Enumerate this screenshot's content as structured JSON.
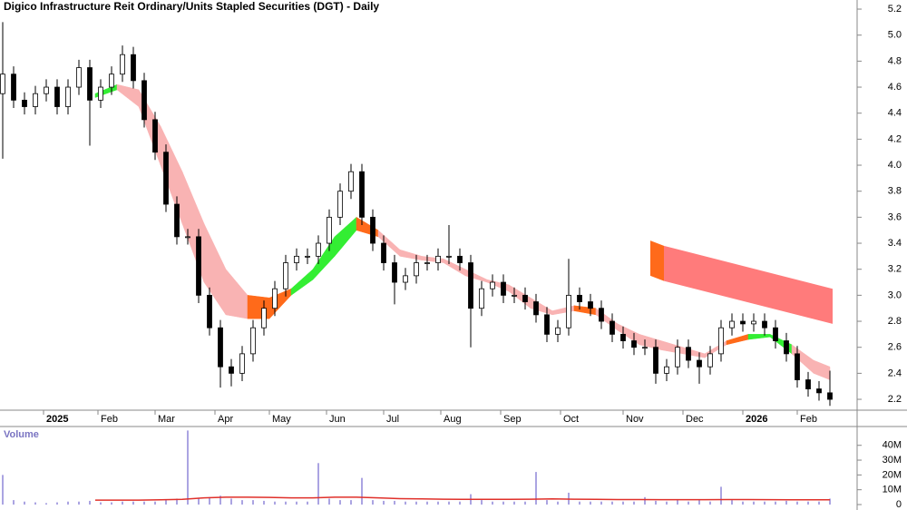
{
  "chart_data": [
    {
      "type": "candlestick",
      "title": "Digico Infrastructure Reit Ordinary/Units Stapled Securities (DGT) - Daily",
      "x": [
        1,
        5,
        9,
        13,
        17,
        21,
        25,
        29,
        33,
        37,
        41,
        45,
        49,
        53,
        57,
        61,
        65,
        69,
        73,
        77,
        81,
        85,
        89,
        93,
        97,
        101,
        105,
        109,
        113,
        117,
        121,
        125,
        129,
        133,
        137,
        141,
        145,
        149,
        153,
        157,
        161,
        165,
        169,
        173,
        177,
        181,
        185,
        189,
        193,
        197,
        201,
        205,
        209,
        213,
        217,
        221,
        225,
        229,
        233,
        237,
        241,
        245,
        249,
        253,
        257,
        261,
        265,
        269,
        273,
        277,
        281,
        285,
        289,
        293,
        297,
        301,
        305
      ],
      "open": [
        4.55,
        4.7,
        4.5,
        4.45,
        4.55,
        4.6,
        4.45,
        4.6,
        4.75,
        4.5,
        4.6,
        4.7,
        4.85,
        4.65,
        4.35,
        4.1,
        3.7,
        3.45,
        3.45,
        3.0,
        2.75,
        2.45,
        2.4,
        2.55,
        2.75,
        2.9,
        3.05,
        3.25,
        3.3,
        3.3,
        3.4,
        3.6,
        3.8,
        3.95,
        3.6,
        3.4,
        3.25,
        3.1,
        3.15,
        3.25,
        3.25,
        3.3,
        3.3,
        3.25,
        2.9,
        3.05,
        3.1,
        3.0,
        3.0,
        2.95,
        2.85,
        2.7,
        2.75,
        3.0,
        2.95,
        2.9,
        2.8,
        2.7,
        2.65,
        2.6,
        2.6,
        2.4,
        2.45,
        2.6,
        2.5,
        2.45,
        2.55,
        2.75,
        2.8,
        2.78,
        2.8,
        2.75,
        2.65,
        2.55,
        2.35,
        2.28,
        2.25
      ],
      "high": [
        5.1,
        4.76,
        4.56,
        4.61,
        4.66,
        4.66,
        4.66,
        4.81,
        4.81,
        4.66,
        4.76,
        4.92,
        4.91,
        4.71,
        4.41,
        4.16,
        3.76,
        3.51,
        3.51,
        3.06,
        2.81,
        2.51,
        2.61,
        2.81,
        2.96,
        3.11,
        3.31,
        3.36,
        3.36,
        3.46,
        3.66,
        3.86,
        4.01,
        4.01,
        3.66,
        3.46,
        3.31,
        3.21,
        3.31,
        3.31,
        3.36,
        3.54,
        3.36,
        3.31,
        3.11,
        3.16,
        3.16,
        3.06,
        3.06,
        3.01,
        2.91,
        2.81,
        3.28,
        3.06,
        3.01,
        2.96,
        2.86,
        2.76,
        2.71,
        2.66,
        2.66,
        2.51,
        2.66,
        2.66,
        2.56,
        2.61,
        2.81,
        2.86,
        2.86,
        2.86,
        2.86,
        2.81,
        2.71,
        2.61,
        2.41,
        2.34,
        2.42
      ],
      "low": [
        4.05,
        4.44,
        4.39,
        4.39,
        4.49,
        4.39,
        4.39,
        4.54,
        4.15,
        4.44,
        4.54,
        4.64,
        4.59,
        4.29,
        4.04,
        3.64,
        3.39,
        3.39,
        2.94,
        2.69,
        2.29,
        2.3,
        2.34,
        2.49,
        2.69,
        2.84,
        2.99,
        3.19,
        3.24,
        3.24,
        3.34,
        3.54,
        3.74,
        3.54,
        3.34,
        3.19,
        2.93,
        3.04,
        3.09,
        3.19,
        3.19,
        3.24,
        3.19,
        2.6,
        2.84,
        2.99,
        2.94,
        2.94,
        2.89,
        2.79,
        2.64,
        2.64,
        2.69,
        2.89,
        2.84,
        2.74,
        2.64,
        2.59,
        2.54,
        2.54,
        2.32,
        2.34,
        2.39,
        2.44,
        2.32,
        2.39,
        2.49,
        2.69,
        2.72,
        2.72,
        2.69,
        2.59,
        2.49,
        2.29,
        2.22,
        2.19,
        2.15
      ],
      "close": [
        4.7,
        4.5,
        4.45,
        4.55,
        4.6,
        4.45,
        4.6,
        4.75,
        4.5,
        4.6,
        4.7,
        4.85,
        4.65,
        4.35,
        4.1,
        3.7,
        3.45,
        3.45,
        3.0,
        2.75,
        2.45,
        2.4,
        2.55,
        2.75,
        2.9,
        3.05,
        3.25,
        3.3,
        3.3,
        3.4,
        3.6,
        3.8,
        3.95,
        3.6,
        3.4,
        3.25,
        3.1,
        3.15,
        3.25,
        3.25,
        3.3,
        3.3,
        3.25,
        2.9,
        3.05,
        3.1,
        3.0,
        3.0,
        2.95,
        2.85,
        2.7,
        2.75,
        3.0,
        2.95,
        2.9,
        2.8,
        2.7,
        2.65,
        2.6,
        2.6,
        2.4,
        2.45,
        2.6,
        2.5,
        2.45,
        2.55,
        2.75,
        2.8,
        2.78,
        2.8,
        2.75,
        2.65,
        2.55,
        2.35,
        2.28,
        2.25,
        2.2
      ],
      "up_color": "#ffffff",
      "down_color": "#000000",
      "xlim": [
        0,
        315
      ],
      "xticks": [
        {
          "value": 16,
          "label": "2025"
        },
        {
          "value": 36,
          "label": "Feb"
        },
        {
          "value": 57,
          "label": "Mar"
        },
        {
          "value": 79,
          "label": "Apr"
        },
        {
          "value": 99,
          "label": "May"
        },
        {
          "value": 120,
          "label": "Jun"
        },
        {
          "value": 141,
          "label": "Jul"
        },
        {
          "value": 162,
          "label": "Aug"
        },
        {
          "value": 184,
          "label": "Sep"
        },
        {
          "value": 206,
          "label": "Oct"
        },
        {
          "value": 229,
          "label": "Nov"
        },
        {
          "value": 251,
          "label": "Dec"
        },
        {
          "value": 273,
          "label": "2026"
        },
        {
          "value": 293,
          "label": "Feb"
        }
      ],
      "ylim": [
        2.12,
        5.27
      ],
      "yticks": [
        2.2,
        2.4,
        2.6,
        2.8,
        {
          "value": 3,
          "label": "3.0"
        },
        3.2,
        3.4,
        3.6,
        3.8,
        {
          "value": 4,
          "label": "4.0"
        },
        4.2,
        4.4,
        4.6,
        4.8,
        {
          "value": 5,
          "label": "5.0"
        },
        5.2
      ],
      "ribbon": {
        "x": [
          35,
          43,
          51,
          59,
          67,
          75,
          83,
          91,
          99,
          107,
          115,
          123,
          131,
          139,
          147,
          155,
          163,
          171,
          179,
          187,
          195,
          203,
          211,
          219,
          227,
          235,
          243,
          251,
          259,
          267,
          275,
          283,
          291,
          299,
          305
        ],
        "upper": [
          4.55,
          4.62,
          4.58,
          4.3,
          3.95,
          3.55,
          3.2,
          3.0,
          2.98,
          3.05,
          3.2,
          3.45,
          3.6,
          3.5,
          3.35,
          3.3,
          3.28,
          3.2,
          3.12,
          3.08,
          2.98,
          2.88,
          2.92,
          2.9,
          2.78,
          2.7,
          2.65,
          2.6,
          2.55,
          2.65,
          2.7,
          2.7,
          2.62,
          2.5,
          2.45
        ],
        "lower": [
          4.52,
          4.58,
          4.45,
          4.0,
          3.55,
          3.1,
          2.85,
          2.82,
          2.82,
          3.0,
          3.12,
          3.3,
          3.5,
          3.45,
          3.3,
          3.27,
          3.25,
          3.15,
          3.1,
          3.03,
          2.9,
          2.85,
          2.88,
          2.85,
          2.73,
          2.62,
          2.58,
          2.55,
          2.52,
          2.62,
          2.66,
          2.68,
          2.55,
          2.4,
          2.35
        ],
        "colors": [
          "#33ee33",
          "#f9b3b3",
          "#f9b3b3",
          "#f9b3b3",
          "#f9b3b3",
          "#f9b3b3",
          "#f9b3b3",
          "#ff6a1a",
          "#ff6a1a",
          "#33ee33",
          "#33ee33",
          "#33ee33",
          "#ff6a1a",
          "#f9b3b3",
          "#f9b3b3",
          "#f9b3b3",
          "#f9b3b3",
          "#f9b3b3",
          "#f9b3b3",
          "#f9b3b3",
          "#f9b3b3",
          "#f9b3b3",
          "#ff6a1a",
          "#f9b3b3",
          "#f9b3b3",
          "#f9b3b3",
          "#f9b3b3",
          "#f9b3b3",
          "#f9b3b3",
          "#ff6a1a",
          "#33ee33",
          "#33ee33",
          "#f9b3b3",
          "#f9b3b3"
        ]
      },
      "projection": {
        "x": [
          239,
          244,
          306
        ],
        "upper": [
          3.42,
          3.38,
          3.05
        ],
        "lower": [
          3.15,
          3.11,
          2.78
        ],
        "colors": [
          "#ff6a1a",
          "#ff7b7b"
        ]
      }
    },
    {
      "type": "bar",
      "title": "Volume",
      "x": [
        1,
        5,
        9,
        13,
        17,
        21,
        25,
        29,
        33,
        37,
        41,
        45,
        49,
        53,
        57,
        61,
        65,
        69,
        73,
        77,
        81,
        85,
        89,
        93,
        97,
        101,
        105,
        109,
        113,
        117,
        121,
        125,
        129,
        133,
        137,
        141,
        145,
        149,
        153,
        157,
        161,
        165,
        169,
        173,
        177,
        181,
        185,
        189,
        193,
        197,
        201,
        205,
        209,
        213,
        217,
        221,
        225,
        229,
        233,
        237,
        241,
        245,
        249,
        253,
        257,
        261,
        265,
        269,
        273,
        277,
        281,
        285,
        289,
        293,
        297,
        301,
        305
      ],
      "values": [
        20000000,
        3000000,
        2000000,
        1500000,
        1000000,
        1500000,
        2000000,
        2000000,
        2500000,
        1500000,
        1500000,
        2000000,
        2000000,
        2000000,
        2000000,
        3000000,
        4000000,
        50000000,
        4000000,
        5000000,
        6000000,
        4000000,
        3000000,
        3000000,
        2500000,
        2000000,
        2000000,
        2000000,
        2000000,
        28000000,
        4000000,
        3000000,
        3000000,
        18000000,
        3000000,
        2500000,
        2500000,
        2000000,
        2000000,
        2000000,
        2000000,
        2000000,
        2000000,
        7000000,
        3000000,
        2000000,
        2000000,
        2000000,
        2000000,
        22000000,
        3000000,
        2000000,
        8000000,
        2000000,
        2000000,
        2000000,
        2000000,
        2000000,
        2000000,
        5000000,
        2500000,
        2000000,
        3000000,
        2000000,
        3000000,
        2000000,
        12000000,
        3000000,
        2000000,
        2000000,
        2000000,
        2000000,
        2500000,
        2000000,
        2000000,
        2000000,
        4000000
      ],
      "color": "#8f86d8",
      "xlim": [
        0,
        315
      ],
      "ylim": [
        0,
        52700000
      ],
      "yticks": [
        0,
        {
          "value": 10000000,
          "label": "10M"
        },
        {
          "value": 20000000,
          "label": "20M"
        },
        {
          "value": 30000000,
          "label": "30M"
        },
        {
          "value": 40000000,
          "label": "40M"
        }
      ],
      "ma": {
        "x": [
          35,
          43,
          51,
          59,
          67,
          75,
          83,
          91,
          99,
          107,
          115,
          123,
          131,
          139,
          147,
          155,
          163,
          171,
          179,
          187,
          195,
          203,
          211,
          219,
          227,
          235,
          243,
          251,
          259,
          267,
          275,
          283,
          291,
          299,
          305
        ],
        "values": [
          3000000,
          3000000,
          3000000,
          3200000,
          3500000,
          4500000,
          5000000,
          5000000,
          4800000,
          4500000,
          4500000,
          5000000,
          5000000,
          4500000,
          4000000,
          3800000,
          3600000,
          3500000,
          3500000,
          3500000,
          3600000,
          3800000,
          3600000,
          3500000,
          3400000,
          3400000,
          3300000,
          3300000,
          3300000,
          3400000,
          3400000,
          3300000,
          3200000,
          3200000,
          3200000
        ],
        "color": "#e0302a"
      }
    }
  ]
}
